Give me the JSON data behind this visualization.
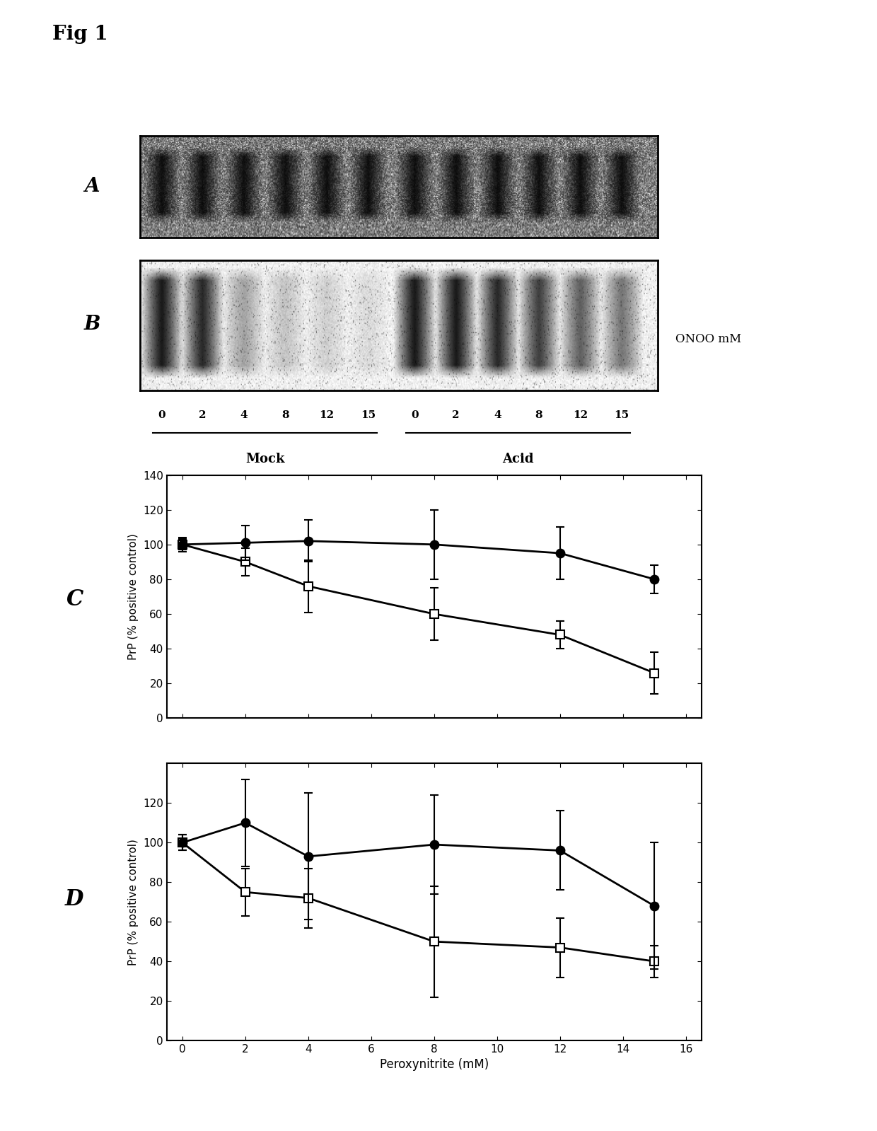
{
  "fig_label": "Fig 1",
  "panel_A_label": "A",
  "panel_B_label": "B",
  "panel_C_label": "C",
  "panel_D_label": "D",
  "mock_label": "Mock",
  "acid_label": "Acid",
  "onoo_label": "ONOO mM",
  "xlabel": "Peroxynitrite (mM)",
  "ylabel_C": "PrP (% positive control)",
  "ylabel_D": "PrP (% positive control)",
  "x_values": [
    0,
    2,
    4,
    8,
    12,
    15
  ],
  "C_filled_y": [
    100,
    101,
    102,
    100,
    95,
    80
  ],
  "C_filled_yerr": [
    3,
    10,
    12,
    20,
    15,
    8
  ],
  "C_open_y": [
    100,
    90,
    76,
    60,
    48,
    26
  ],
  "C_open_yerr": [
    4,
    8,
    15,
    15,
    8,
    12
  ],
  "D_filled_y": [
    100,
    110,
    93,
    99,
    96,
    68
  ],
  "D_filled_yerr": [
    4,
    22,
    32,
    25,
    20,
    32
  ],
  "D_open_y": [
    100,
    75,
    72,
    50,
    47,
    40
  ],
  "D_open_yerr": [
    4,
    12,
    15,
    28,
    15,
    8
  ],
  "C_ylim": [
    0,
    140
  ],
  "D_ylim": [
    0,
    140
  ],
  "C_yticks": [
    0,
    20,
    40,
    60,
    80,
    100,
    120,
    140
  ],
  "D_yticks": [
    0,
    20,
    40,
    60,
    80,
    100,
    120
  ],
  "xticks": [
    0,
    2,
    4,
    6,
    8,
    10,
    12,
    14,
    16
  ],
  "xlim": [
    -0.5,
    16.5
  ],
  "blot_tick_labels": [
    "0",
    "2",
    "4",
    "8",
    "12",
    "15",
    "0",
    "2",
    "4",
    "8",
    "12",
    "15"
  ]
}
